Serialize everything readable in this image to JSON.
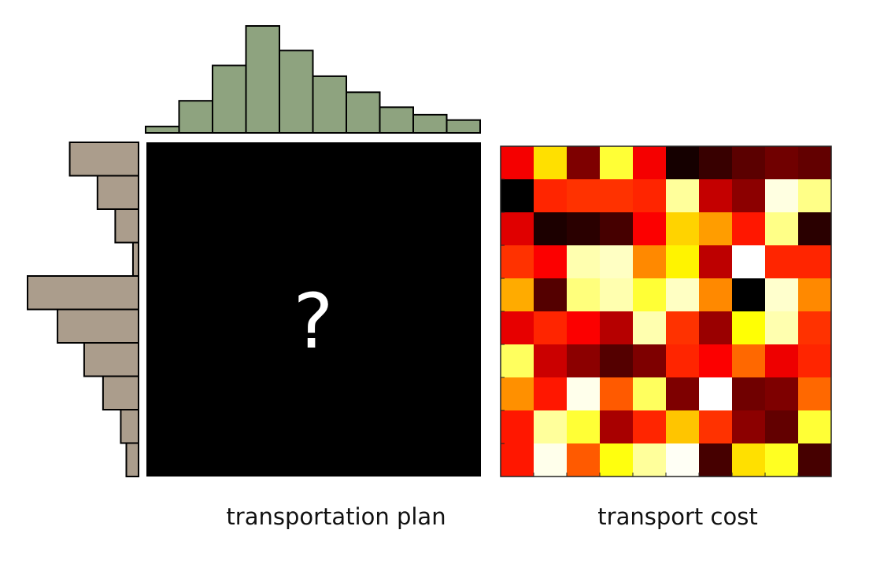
{
  "labels": {
    "plan": "transportation plan",
    "cost": "transport cost",
    "unknown": "?"
  },
  "colors": {
    "top_hist": "#8ea37f",
    "left_hist": "#ab9d8c",
    "plan_fill": "#000000",
    "bar_stroke": "#000000"
  },
  "top_histogram": [
    0.06,
    0.3,
    0.63,
    1.0,
    0.77,
    0.53,
    0.38,
    0.24,
    0.17,
    0.12
  ],
  "left_histogram": [
    0.62,
    0.37,
    0.21,
    0.05,
    1.0,
    0.73,
    0.49,
    0.32,
    0.16,
    0.11
  ],
  "cost_matrix": [
    [
      0.35,
      0.7,
      0.18,
      0.8,
      0.35,
      0.03,
      0.08,
      0.13,
      0.16,
      0.14
    ],
    [
      0.0,
      0.42,
      0.44,
      0.44,
      0.42,
      0.9,
      0.28,
      0.2,
      0.97,
      0.88
    ],
    [
      0.32,
      0.04,
      0.06,
      0.1,
      0.36,
      0.68,
      0.6,
      0.4,
      0.88,
      0.06
    ],
    [
      0.44,
      0.36,
      0.92,
      0.94,
      0.57,
      0.73,
      0.27,
      1.0,
      0.42,
      0.42
    ],
    [
      0.62,
      0.12,
      0.87,
      0.92,
      0.8,
      0.94,
      0.57,
      0.0,
      0.95,
      0.57
    ],
    [
      0.33,
      0.42,
      0.36,
      0.26,
      0.92,
      0.44,
      0.22,
      0.75,
      0.92,
      0.44
    ],
    [
      0.84,
      0.29,
      0.2,
      0.12,
      0.18,
      0.42,
      0.36,
      0.52,
      0.34,
      0.42
    ],
    [
      0.58,
      0.4,
      0.98,
      0.5,
      0.84,
      0.18,
      1.0,
      0.16,
      0.18,
      0.52
    ],
    [
      0.4,
      0.9,
      0.8,
      0.24,
      0.42,
      0.66,
      0.44,
      0.2,
      0.14,
      0.8
    ],
    [
      0.4,
      0.98,
      0.5,
      0.76,
      0.9,
      0.99,
      0.1,
      0.7,
      0.78,
      0.1
    ]
  ]
}
